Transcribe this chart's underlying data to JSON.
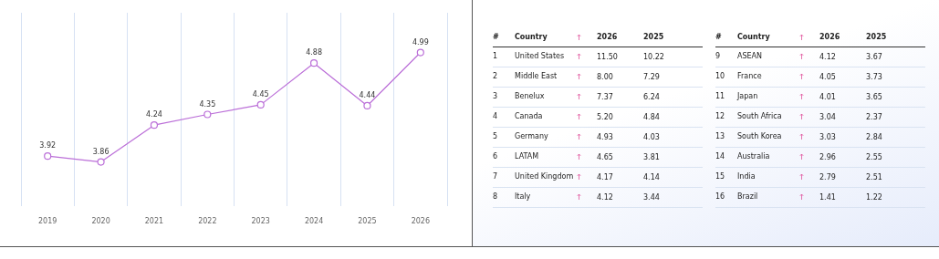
{
  "chart_data": [
    {
      "type": "line",
      "categories": [
        "2019",
        "2020",
        "2021",
        "2022",
        "2023",
        "2024",
        "2025",
        "2026"
      ],
      "series": [
        {
          "color": "#bb6fd8",
          "values": [
            3.92,
            3.86,
            4.24,
            4.35,
            4.45,
            4.88,
            4.44,
            4.99
          ]
        }
      ],
      "data_labels": true,
      "grid": "x",
      "marker": "circle",
      "legend": false,
      "tick_labels": "x"
    },
    {
      "type": "heatmap",
      "y2label": "#",
      "ylabel": "Country",
      "categories": [
        "2026",
        "2025"
      ],
      "y_categories": [
        "United States",
        "Middle East",
        "Benelux",
        "Canada",
        "Germany",
        "LATAM",
        "United Kingdom",
        "Italy"
      ],
      "y2_categories": [
        "1",
        "2",
        "3",
        "4",
        "5",
        "6",
        "7",
        "8"
      ],
      "cells": [
        [
          11.5,
          10.22
        ],
        [
          8,
          7.29
        ],
        [
          7.37,
          6.24
        ],
        [
          5.2,
          4.84
        ],
        [
          4.93,
          4.03
        ],
        [
          4.65,
          3.81
        ],
        [
          4.17,
          4.14
        ],
        [
          4.12,
          3.44
        ]
      ],
      "cell_labels": [
        [
          "11.50",
          "10.22"
        ],
        [
          "8.00",
          "7.29"
        ],
        [
          "7.37",
          "6.24"
        ],
        [
          "5.20",
          "4.84"
        ],
        [
          "4.93",
          "4.03"
        ],
        [
          "4.65",
          "3.81"
        ],
        [
          "4.17",
          "4.14"
        ],
        [
          "4.12",
          "3.44"
        ]
      ]
    },
    {
      "type": "heatmap",
      "y2label": "#",
      "ylabel": "Country",
      "categories": [
        "2026",
        "2025"
      ],
      "y_categories": [
        "ASEAN",
        "France",
        "Japan",
        "South Africa",
        "South Korea",
        "Australia",
        "India",
        "Brazil"
      ],
      "y2_categories": [
        "9",
        "10",
        "11",
        "12",
        "13",
        "14",
        "15",
        "16"
      ],
      "cells": [
        [
          4.12,
          3.67
        ],
        [
          4.05,
          3.73
        ],
        [
          4.01,
          3.65
        ],
        [
          3.04,
          2.37
        ],
        [
          3.03,
          2.84
        ],
        [
          2.96,
          2.55
        ],
        [
          2.79,
          2.51
        ],
        [
          1.41,
          1.22
        ]
      ],
      "cell_labels": [
        [
          "4.12",
          "3.67"
        ],
        [
          "4.05",
          "3.73"
        ],
        [
          "4.01",
          "3.65"
        ],
        [
          "3.04",
          "2.37"
        ],
        [
          "3.03",
          "2.84"
        ],
        [
          "2.96",
          "2.55"
        ],
        [
          "2.79",
          "2.51"
        ],
        [
          "1.41",
          "1.22"
        ]
      ]
    }
  ]
}
